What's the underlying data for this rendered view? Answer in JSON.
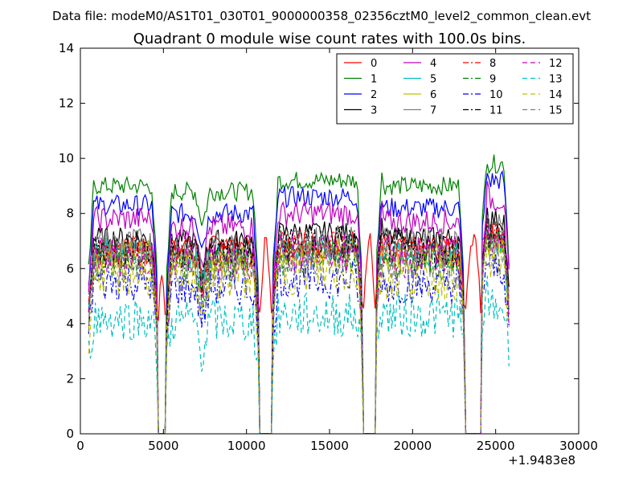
{
  "header": {
    "suptitle": "Data file: modeM0/AS1T01_030T01_9000000358_02356cztM0_level2_common_clean.evt"
  },
  "chart_data": {
    "type": "line",
    "title": "Quadrant 0 module wise count rates with 100.0s bins.",
    "xlabel": "",
    "ylabel": "",
    "x_offset_label": "+1.9483e8",
    "xlim": [
      0,
      30000
    ],
    "ylim": [
      0,
      14
    ],
    "xticks": [
      0,
      5000,
      10000,
      15000,
      20000,
      25000,
      30000
    ],
    "xtick_labels": [
      "0",
      "5000",
      "10000",
      "15000",
      "20000",
      "25000",
      "30000"
    ],
    "yticks": [
      0,
      2,
      4,
      6,
      8,
      10,
      12,
      14
    ],
    "ytick_labels": [
      "0",
      "2",
      "4",
      "6",
      "8",
      "10",
      "12",
      "14"
    ],
    "grid": false,
    "legend_position": "top-right",
    "segments": [
      [
        500,
        4600
      ],
      [
        4700,
        5100
      ],
      [
        5200,
        10700
      ],
      [
        10800,
        11500
      ],
      [
        11600,
        16950
      ],
      [
        17050,
        17750
      ],
      [
        17850,
        23100
      ],
      [
        23200,
        24100
      ],
      [
        24200,
        25800
      ]
    ],
    "series": [
      {
        "name": "0",
        "color": "#ff0000",
        "dash": "solid",
        "levels": [
          6.8,
          6.7,
          6.9,
          7.0,
          6.8,
          7.0,
          6.9,
          7.1,
          7.2
        ]
      },
      {
        "name": "1",
        "color": "#008000",
        "dash": "solid",
        "levels": [
          9.0,
          0.0,
          8.8,
          0.0,
          9.2,
          0.0,
          9.0,
          0.0,
          9.8
        ]
      },
      {
        "name": "2",
        "color": "#0000ff",
        "dash": "solid",
        "levels": [
          8.3,
          0.0,
          8.0,
          0.0,
          8.6,
          0.0,
          8.2,
          0.0,
          9.2
        ]
      },
      {
        "name": "3",
        "color": "#000000",
        "dash": "solid",
        "levels": [
          7.1,
          0.0,
          7.0,
          0.0,
          7.3,
          0.0,
          7.1,
          0.0,
          7.8
        ]
      },
      {
        "name": "4",
        "color": "#bf00bf",
        "dash": "solid",
        "levels": [
          7.8,
          0.0,
          7.5,
          0.0,
          8.0,
          0.0,
          7.7,
          0.0,
          8.5
        ]
      },
      {
        "name": "5",
        "color": "#00bfbf",
        "dash": "solid",
        "levels": [
          6.6,
          0.0,
          6.5,
          0.0,
          6.7,
          0.0,
          6.5,
          0.0,
          7.0
        ]
      },
      {
        "name": "6",
        "color": "#bfbf00",
        "dash": "solid",
        "levels": [
          6.5,
          0.0,
          6.3,
          0.0,
          6.6,
          0.0,
          6.4,
          0.0,
          7.0
        ]
      },
      {
        "name": "7",
        "color": "#808080",
        "dash": "solid",
        "levels": [
          6.9,
          0.0,
          6.8,
          0.0,
          7.0,
          0.0,
          6.9,
          0.0,
          7.4
        ]
      },
      {
        "name": "8",
        "color": "#ff0000",
        "dash": "dashdot",
        "levels": [
          6.6,
          0.0,
          6.5,
          0.0,
          6.8,
          0.0,
          6.6,
          0.0,
          7.1
        ]
      },
      {
        "name": "9",
        "color": "#008000",
        "dash": "dashdot",
        "levels": [
          6.3,
          0.0,
          6.1,
          0.0,
          6.4,
          0.0,
          6.2,
          0.0,
          6.8
        ]
      },
      {
        "name": "10",
        "color": "#0000ff",
        "dash": "dashdot",
        "levels": [
          5.5,
          0.0,
          5.3,
          0.0,
          5.6,
          0.0,
          5.4,
          0.0,
          6.0
        ]
      },
      {
        "name": "11",
        "color": "#000000",
        "dash": "dashdot",
        "levels": [
          6.7,
          0.0,
          6.6,
          0.0,
          6.9,
          0.0,
          6.7,
          0.0,
          7.2
        ]
      },
      {
        "name": "12",
        "color": "#bf00bf",
        "dash": "dashed",
        "levels": [
          6.4,
          0.0,
          6.3,
          0.0,
          6.6,
          0.0,
          6.4,
          0.0,
          7.0
        ]
      },
      {
        "name": "13",
        "color": "#00bfbf",
        "dash": "dashed",
        "levels": [
          4.2,
          0.0,
          4.1,
          0.0,
          4.3,
          0.0,
          4.3,
          0.0,
          4.6
        ]
      },
      {
        "name": "14",
        "color": "#bfbf00",
        "dash": "dashed",
        "levels": [
          5.8,
          0.0,
          5.7,
          0.0,
          5.9,
          0.0,
          5.7,
          0.0,
          6.3
        ]
      },
      {
        "name": "15",
        "color": "#808080",
        "dash": "dashed",
        "levels": [
          6.2,
          0.0,
          6.0,
          0.0,
          6.3,
          0.0,
          6.1,
          0.0,
          6.6
        ]
      }
    ]
  }
}
